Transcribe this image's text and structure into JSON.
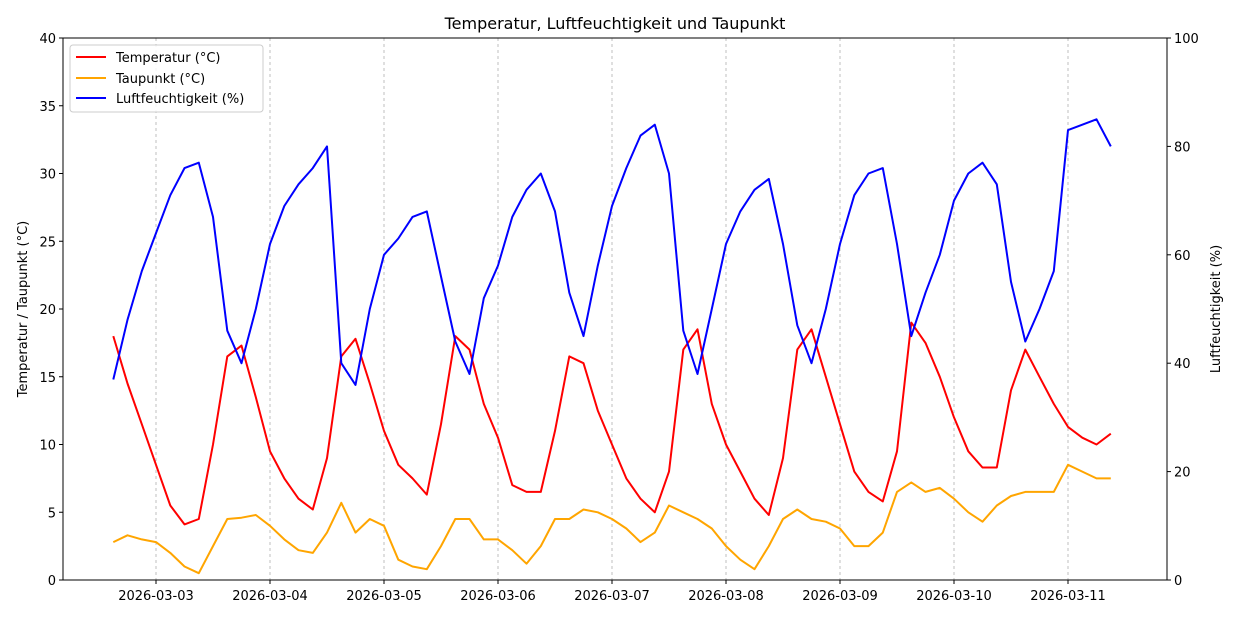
{
  "chart_data": {
    "type": "line",
    "title": "Temperatur, Luftfeuchtigkeit und Taupunkt",
    "ylabel_left": "Temperatur / Taupunkt (°C)",
    "ylabel_right": "Luftfeuchtigkeit (%)",
    "ylim_left": [
      0,
      40
    ],
    "ylim_right": [
      0,
      100
    ],
    "yticks_left": [
      "0",
      "5",
      "10",
      "15",
      "20",
      "25",
      "30",
      "35",
      "40"
    ],
    "yticks_right": [
      "0",
      "20",
      "40",
      "60",
      "80",
      "100"
    ],
    "xticks": [
      "2026-03-03",
      "2026-03-04",
      "2026-03-05",
      "2026-03-06",
      "2026-03-07",
      "2026-03-08",
      "2026-03-09",
      "2026-03-10",
      "2026-03-11"
    ],
    "grid": "vertical dashed at x ticks",
    "legend_position": "top-left",
    "x": [
      "2026-03-02 15:00",
      "2026-03-02 18:00",
      "2026-03-02 21:00",
      "2026-03-03 00:00",
      "2026-03-03 03:00",
      "2026-03-03 06:00",
      "2026-03-03 09:00",
      "2026-03-03 12:00",
      "2026-03-03 15:00",
      "2026-03-03 18:00",
      "2026-03-03 21:00",
      "2026-03-04 00:00",
      "2026-03-04 03:00",
      "2026-03-04 06:00",
      "2026-03-04 09:00",
      "2026-03-04 12:00",
      "2026-03-04 15:00",
      "2026-03-04 18:00",
      "2026-03-04 21:00",
      "2026-03-05 00:00",
      "2026-03-05 03:00",
      "2026-03-05 06:00",
      "2026-03-05 09:00",
      "2026-03-05 12:00",
      "2026-03-05 15:00",
      "2026-03-05 18:00",
      "2026-03-05 21:00",
      "2026-03-06 00:00",
      "2026-03-06 03:00",
      "2026-03-06 06:00",
      "2026-03-06 09:00",
      "2026-03-06 12:00",
      "2026-03-06 15:00",
      "2026-03-06 18:00",
      "2026-03-06 21:00",
      "2026-03-07 00:00",
      "2026-03-07 03:00",
      "2026-03-07 06:00",
      "2026-03-07 09:00",
      "2026-03-07 12:00",
      "2026-03-07 15:00",
      "2026-03-07 18:00",
      "2026-03-07 21:00",
      "2026-03-08 00:00",
      "2026-03-08 03:00",
      "2026-03-08 06:00",
      "2026-03-08 09:00",
      "2026-03-08 12:00",
      "2026-03-08 15:00",
      "2026-03-08 18:00",
      "2026-03-08 21:00",
      "2026-03-09 00:00",
      "2026-03-09 03:00",
      "2026-03-09 06:00",
      "2026-03-09 09:00",
      "2026-03-09 12:00",
      "2026-03-09 15:00",
      "2026-03-09 18:00",
      "2026-03-09 21:00",
      "2026-03-10 00:00",
      "2026-03-10 03:00",
      "2026-03-10 06:00",
      "2026-03-10 09:00",
      "2026-03-10 12:00",
      "2026-03-10 15:00",
      "2026-03-10 18:00",
      "2026-03-10 21:00",
      "2026-03-11 00:00",
      "2026-03-11 03:00",
      "2026-03-11 06:00",
      "2026-03-11 09:00"
    ],
    "series": [
      {
        "name": "Temperatur (°C)",
        "axis": "left",
        "color": "#ff0000",
        "values": [
          18.0,
          14.5,
          11.5,
          8.5,
          5.5,
          4.1,
          4.5,
          10,
          16.5,
          17.3,
          13.5,
          9.5,
          7.5,
          6,
          5.2,
          9,
          16.5,
          17.8,
          14.5,
          11,
          8.5,
          7.5,
          6.3,
          11.5,
          18,
          17,
          13,
          10.5,
          7,
          6.5,
          6.5,
          11,
          16.5,
          16,
          12.5,
          10,
          7.5,
          6,
          5,
          8,
          17,
          18.5,
          13,
          10,
          8,
          6,
          4.8,
          9,
          17,
          18.5,
          15,
          11.5,
          8,
          6.5,
          5.8,
          9.5,
          19,
          17.5,
          15,
          12,
          9.5,
          8.3,
          8.3,
          14,
          17,
          15,
          13,
          11.3,
          10.5,
          10,
          10.8
        ]
      },
      {
        "name": "Taupunkt (°C)",
        "axis": "left",
        "color": "#ffa500",
        "values": [
          2.8,
          3.3,
          3,
          2.8,
          2,
          1,
          0.5,
          2.5,
          4.5,
          4.6,
          4.8,
          4,
          3,
          2.2,
          2,
          3.5,
          5.7,
          3.5,
          4.5,
          4,
          1.5,
          1,
          0.8,
          2.5,
          4.5,
          4.5,
          3,
          3,
          2.2,
          1.2,
          2.5,
          4.5,
          4.5,
          5.2,
          5,
          4.5,
          3.8,
          2.8,
          3.5,
          5.5,
          5,
          4.5,
          3.8,
          2.5,
          1.5,
          0.8,
          2.5,
          4.5,
          5.2,
          4.5,
          4.3,
          3.8,
          2.5,
          2.5,
          3.5,
          6.5,
          7.2,
          6.5,
          6.8,
          6,
          5,
          4.3,
          5.5,
          6.2,
          6.5,
          6.5,
          6.5,
          8.5,
          8,
          7.5,
          7.5
        ]
      },
      {
        "name": "Luftfeuchtigkeit (%)",
        "axis": "right",
        "color": "#0000ff",
        "values": [
          37,
          48,
          57,
          64,
          71,
          76,
          77,
          67,
          46,
          40,
          50,
          62,
          69,
          73,
          76,
          80,
          40,
          36,
          50,
          60,
          63,
          67,
          68,
          56,
          44,
          38,
          52,
          58,
          67,
          72,
          75,
          68,
          53,
          45,
          58,
          69,
          76,
          82,
          84,
          75,
          46,
          38,
          50,
          62,
          68,
          72,
          74,
          62,
          47,
          40,
          50,
          62,
          71,
          75,
          76,
          62,
          45,
          53,
          60,
          70,
          75,
          77,
          73,
          55,
          44,
          50,
          57,
          83,
          84,
          85,
          80
        ]
      }
    ]
  }
}
